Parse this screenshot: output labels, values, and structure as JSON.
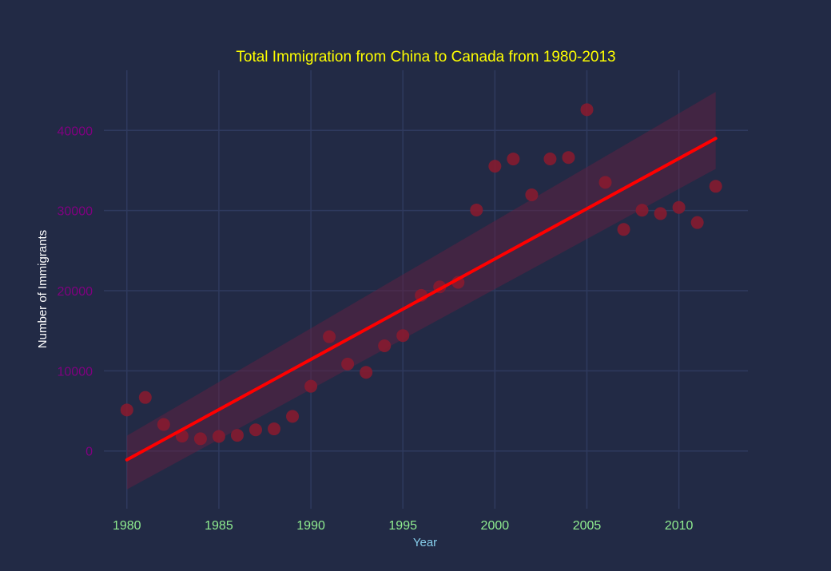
{
  "chart_data": {
    "type": "scatter",
    "title": "Total Immigration from China to Canada from 1980-2013",
    "xlabel": "Year",
    "ylabel": "Number of Immigrants",
    "xlim": [
      1978.75,
      2013.75
    ],
    "ylim": [
      -7200,
      47500
    ],
    "xticks": [
      1980,
      1985,
      1990,
      1995,
      2000,
      2005,
      2010
    ],
    "yticks": [
      0,
      10000,
      20000,
      30000,
      40000
    ],
    "grid": true,
    "colors": {
      "background": "#222a45",
      "grid": "#2f3a5e",
      "points": "#8b1a2e",
      "regression_line": "#ff0000",
      "confidence_band": "#6b2040",
      "title": "#ffff00",
      "xtick": "#90ee90",
      "ytick": "#800080",
      "xlabel": "#87ceeb",
      "ylabel": "#ffffff"
    },
    "series": [
      {
        "x": [
          1980,
          1981,
          1982,
          1983,
          1984,
          1985,
          1986,
          1987,
          1988,
          1989,
          1990,
          1991,
          1992,
          1993,
          1994,
          1995,
          1996,
          1997,
          1998,
          1999,
          2000,
          2001,
          2002,
          2003,
          2004,
          2005,
          2006,
          2007,
          2008,
          2009,
          2010,
          2011,
          2012
        ],
        "y": [
          5123,
          6682,
          3308,
          1863,
          1527,
          1816,
          1960,
          2643,
          2758,
          4323,
          8076,
          14255,
          10846,
          9817,
          13128,
          14398,
          19415,
          20475,
          21049,
          30069,
          35529,
          36434,
          31961,
          36439,
          36619,
          42584,
          33518,
          27642,
          30037,
          29622,
          30391,
          28502,
          33024
        ]
      }
    ],
    "regression": {
      "x": [
        1980,
        2012
      ],
      "y": [
        -1100,
        39000
      ],
      "ci_lower": [
        -4800,
        35200
      ],
      "ci_upper": [
        1900,
        44800
      ]
    }
  }
}
